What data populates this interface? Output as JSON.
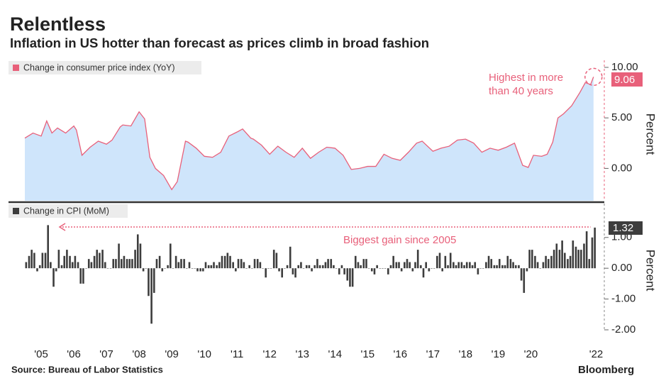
{
  "header": {
    "title": "Relentless",
    "subtitle": "Inflation in US hotter than forecast as prices climb in broad fashion"
  },
  "footer": {
    "source": "Source: Bureau of Labor Statistics",
    "brand": "Bloomberg"
  },
  "chart_data": [
    {
      "type": "area",
      "y_axis_label": "Percent",
      "xlim": [
        2004.5,
        2022.75
      ],
      "ylim": [
        -3.2,
        10.7
      ],
      "yticks": [
        {
          "value": 10,
          "label": "10.00"
        },
        {
          "value": 5,
          "label": "5.00"
        },
        {
          "value": 0,
          "label": "0.00"
        }
      ],
      "annotation_lines": [
        "Highest in more",
        "than 40 years"
      ],
      "series": [
        {
          "name": "Change in consumer price index (YoY)",
          "color": "#e8607a",
          "fill": "#cfe5fb",
          "x": [
            2005.0,
            2005.25,
            2005.5,
            2005.67,
            2005.83,
            2006.0,
            2006.25,
            2006.5,
            2006.58,
            2006.75,
            2007.0,
            2007.25,
            2007.5,
            2007.67,
            2007.92,
            2008.0,
            2008.25,
            2008.5,
            2008.67,
            2008.83,
            2009.0,
            2009.25,
            2009.5,
            2009.67,
            2009.92,
            2010.0,
            2010.25,
            2010.5,
            2010.75,
            2011.0,
            2011.25,
            2011.5,
            2011.67,
            2011.92,
            2012.0,
            2012.25,
            2012.5,
            2012.75,
            2013.0,
            2013.25,
            2013.5,
            2013.75,
            2014.0,
            2014.25,
            2014.5,
            2014.75,
            2015.0,
            2015.25,
            2015.5,
            2015.75,
            2016.0,
            2016.25,
            2016.5,
            2016.75,
            2017.0,
            2017.17,
            2017.5,
            2017.75,
            2018.0,
            2018.25,
            2018.5,
            2018.75,
            2019.0,
            2019.25,
            2019.5,
            2019.75,
            2020.0,
            2020.25,
            2020.42,
            2020.58,
            2020.83,
            2021.0,
            2021.17,
            2021.33,
            2021.5,
            2021.75,
            2022.0,
            2022.17,
            2022.33,
            2022.42
          ],
          "values": [
            3.0,
            3.5,
            3.2,
            4.7,
            3.5,
            4.0,
            3.5,
            4.2,
            3.8,
            1.3,
            2.1,
            2.7,
            2.4,
            2.8,
            4.1,
            4.3,
            4.2,
            5.6,
            4.9,
            1.1,
            0.0,
            -0.7,
            -2.1,
            -1.3,
            2.7,
            2.6,
            2.0,
            1.2,
            1.1,
            1.6,
            3.2,
            3.6,
            3.9,
            3.0,
            2.9,
            2.3,
            1.4,
            2.2,
            1.6,
            1.1,
            2.0,
            1.0,
            1.6,
            2.1,
            2.0,
            1.3,
            -0.1,
            0.0,
            0.2,
            0.2,
            1.4,
            1.0,
            0.8,
            1.6,
            2.5,
            2.7,
            1.7,
            2.0,
            2.2,
            2.8,
            2.9,
            2.5,
            1.6,
            2.0,
            1.8,
            2.1,
            2.5,
            0.3,
            0.1,
            1.3,
            1.2,
            1.4,
            2.6,
            5.0,
            5.4,
            6.2,
            7.5,
            8.5,
            8.3,
            9.06
          ]
        }
      ]
    },
    {
      "type": "bar",
      "y_axis_label": "Percent",
      "xlim": [
        2004.5,
        2022.75
      ],
      "ylim": [
        -2.0,
        2.1
      ],
      "yticks": [
        {
          "value": 1,
          "label": "1.00"
        },
        {
          "value": 0,
          "label": "0.00"
        },
        {
          "value": -1,
          "label": "-1.00"
        },
        {
          "value": -2,
          "label": "-2.00"
        }
      ],
      "xticks": [
        {
          "value": 2005.5,
          "label": "'05"
        },
        {
          "value": 2006.5,
          "label": "'06"
        },
        {
          "value": 2007.5,
          "label": "'07"
        },
        {
          "value": 2008.5,
          "label": "'08"
        },
        {
          "value": 2009.5,
          "label": "'09"
        },
        {
          "value": 2010.5,
          "label": "'10"
        },
        {
          "value": 2011.5,
          "label": "'11"
        },
        {
          "value": 2012.5,
          "label": "'12"
        },
        {
          "value": 2013.5,
          "label": "'13"
        },
        {
          "value": 2014.5,
          "label": "'14"
        },
        {
          "value": 2015.5,
          "label": "'15"
        },
        {
          "value": 2016.5,
          "label": "'16"
        },
        {
          "value": 2017.5,
          "label": "'17"
        },
        {
          "value": 2018.5,
          "label": "'18"
        },
        {
          "value": 2019.5,
          "label": "'19"
        },
        {
          "value": 2020.5,
          "label": "'20"
        },
        {
          "value": 2022.5,
          "label": "'22"
        }
      ],
      "annotation": "Biggest gain since 2005",
      "series": [
        {
          "name": "Change in CPI (MoM)",
          "color": "#3d3d3d",
          "x": [
            2005.04,
            2005.13,
            2005.21,
            2005.29,
            2005.38,
            2005.46,
            2005.54,
            2005.63,
            2005.71,
            2005.79,
            2005.88,
            2005.96,
            2006.04,
            2006.13,
            2006.21,
            2006.29,
            2006.38,
            2006.46,
            2006.54,
            2006.63,
            2006.71,
            2006.79,
            2006.88,
            2006.96,
            2007.04,
            2007.13,
            2007.21,
            2007.29,
            2007.38,
            2007.46,
            2007.54,
            2007.63,
            2007.71,
            2007.79,
            2007.88,
            2007.96,
            2008.04,
            2008.13,
            2008.21,
            2008.29,
            2008.38,
            2008.46,
            2008.54,
            2008.63,
            2008.71,
            2008.79,
            2008.88,
            2008.96,
            2009.04,
            2009.13,
            2009.21,
            2009.29,
            2009.38,
            2009.46,
            2009.54,
            2009.63,
            2009.71,
            2009.79,
            2009.88,
            2009.96,
            2010.04,
            2010.13,
            2010.21,
            2010.29,
            2010.38,
            2010.46,
            2010.54,
            2010.63,
            2010.71,
            2010.79,
            2010.88,
            2010.96,
            2011.04,
            2011.13,
            2011.21,
            2011.29,
            2011.38,
            2011.46,
            2011.54,
            2011.63,
            2011.71,
            2011.79,
            2011.88,
            2011.96,
            2012.04,
            2012.13,
            2012.21,
            2012.29,
            2012.38,
            2012.46,
            2012.54,
            2012.63,
            2012.71,
            2012.79,
            2012.88,
            2012.96,
            2013.04,
            2013.13,
            2013.21,
            2013.29,
            2013.38,
            2013.46,
            2013.54,
            2013.63,
            2013.71,
            2013.79,
            2013.88,
            2013.96,
            2014.04,
            2014.13,
            2014.21,
            2014.29,
            2014.38,
            2014.46,
            2014.54,
            2014.63,
            2014.71,
            2014.79,
            2014.88,
            2014.96,
            2015.04,
            2015.13,
            2015.21,
            2015.29,
            2015.38,
            2015.46,
            2015.54,
            2015.63,
            2015.71,
            2015.79,
            2015.88,
            2015.96,
            2016.04,
            2016.13,
            2016.21,
            2016.29,
            2016.38,
            2016.46,
            2016.54,
            2016.63,
            2016.71,
            2016.79,
            2016.88,
            2016.96,
            2017.04,
            2017.13,
            2017.21,
            2017.29,
            2017.38,
            2017.46,
            2017.54,
            2017.63,
            2017.71,
            2017.79,
            2017.88,
            2017.96,
            2018.04,
            2018.13,
            2018.21,
            2018.29,
            2018.38,
            2018.46,
            2018.54,
            2018.63,
            2018.71,
            2018.79,
            2018.88,
            2018.96,
            2019.04,
            2019.13,
            2019.21,
            2019.29,
            2019.38,
            2019.46,
            2019.54,
            2019.63,
            2019.71,
            2019.79,
            2019.88,
            2019.96,
            2020.04,
            2020.13,
            2020.21,
            2020.29,
            2020.38,
            2020.46,
            2020.54,
            2020.63,
            2020.71,
            2020.79,
            2020.88,
            2020.96,
            2021.04,
            2021.13,
            2021.21,
            2021.29,
            2021.38,
            2021.46,
            2021.54,
            2021.63,
            2021.71,
            2021.79,
            2021.88,
            2021.96,
            2022.04,
            2022.13,
            2022.21,
            2022.29,
            2022.38,
            2022.46
          ],
          "values": [
            0.2,
            0.4,
            0.6,
            0.5,
            -0.1,
            0.1,
            0.5,
            0.5,
            1.4,
            0.2,
            -0.6,
            -0.1,
            0.6,
            0.1,
            0.4,
            0.6,
            0.4,
            0.2,
            0.4,
            0.2,
            -0.5,
            -0.5,
            0.0,
            0.3,
            0.2,
            0.4,
            0.6,
            0.5,
            0.6,
            0.2,
            0.0,
            0.0,
            0.3,
            0.3,
            0.8,
            0.3,
            0.4,
            0.3,
            0.3,
            0.3,
            0.6,
            1.1,
            0.8,
            -0.1,
            0.0,
            -0.9,
            -1.8,
            -0.8,
            0.3,
            0.4,
            -0.1,
            0.0,
            0.1,
            0.8,
            0.0,
            0.4,
            0.2,
            0.3,
            0.3,
            0.0,
            0.2,
            0.0,
            0.0,
            -0.1,
            -0.1,
            -0.1,
            0.2,
            0.1,
            0.1,
            0.2,
            0.1,
            0.2,
            0.4,
            0.4,
            0.5,
            0.4,
            0.2,
            -0.1,
            0.3,
            0.3,
            0.2,
            0.0,
            0.1,
            0.0,
            0.3,
            0.3,
            0.2,
            0.0,
            -0.3,
            0.0,
            0.0,
            0.6,
            0.5,
            -0.1,
            -0.3,
            0.0,
            0.1,
            0.7,
            -0.2,
            -0.3,
            0.1,
            0.2,
            0.0,
            0.1,
            0.1,
            -0.1,
            0.1,
            0.3,
            0.1,
            0.1,
            0.2,
            0.3,
            0.3,
            0.1,
            0.0,
            -0.2,
            0.1,
            -0.2,
            -0.4,
            -0.6,
            -0.6,
            0.4,
            0.2,
            0.1,
            0.3,
            0.3,
            0.0,
            -0.1,
            -0.2,
            0.1,
            0.0,
            0.0,
            0.0,
            -0.2,
            0.1,
            0.4,
            0.2,
            0.2,
            -0.1,
            0.2,
            0.3,
            0.2,
            -0.1,
            0.2,
            0.6,
            0.1,
            -0.3,
            0.2,
            -0.1,
            0.0,
            0.0,
            0.4,
            0.5,
            -0.1,
            0.4,
            0.1,
            0.5,
            0.2,
            0.1,
            0.2,
            0.2,
            0.1,
            0.2,
            0.2,
            0.1,
            0.2,
            -0.2,
            0.0,
            0.0,
            0.2,
            0.4,
            0.3,
            0.1,
            0.1,
            0.3,
            0.1,
            0.1,
            0.4,
            0.3,
            0.2,
            0.1,
            0.1,
            -0.4,
            -0.8,
            -0.1,
            0.6,
            0.6,
            0.4,
            0.2,
            0.0,
            0.2,
            0.4,
            0.3,
            0.4,
            0.6,
            0.8,
            0.6,
            0.9,
            0.5,
            0.3,
            0.4,
            0.9,
            0.7,
            0.6,
            0.6,
            0.8,
            1.2,
            0.3,
            1.0,
            1.32
          ]
        }
      ]
    }
  ]
}
